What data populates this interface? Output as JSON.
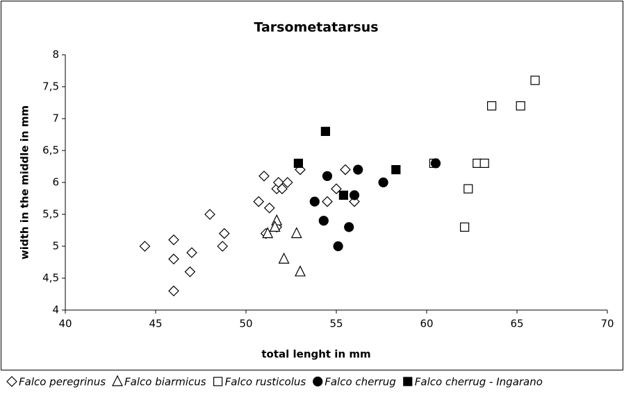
{
  "chart_data": {
    "type": "scatter",
    "title": "Tarsometatarsus",
    "xlabel": "total lenght in mm",
    "ylabel": "width in the middle in mm",
    "xlim": [
      40,
      70
    ],
    "xticks": [
      40,
      45,
      50,
      55,
      60,
      65,
      70
    ],
    "ylim": [
      4,
      8
    ],
    "yticks": [
      4,
      {
        "value": 4.5,
        "label": "4,5"
      },
      5,
      {
        "value": 5.5,
        "label": "5,5"
      },
      6,
      {
        "value": 6.5,
        "label": "6,5"
      },
      7,
      {
        "value": 7.5,
        "label": "7,5"
      },
      8
    ],
    "grid": false,
    "legend": "bottom",
    "series": [
      {
        "name": "Falco peregrinus",
        "color": "#000000",
        "marker": "diamond",
        "filled": false,
        "x": [
          44.4,
          46,
          46,
          46,
          47,
          46.9,
          48,
          48.7,
          48.8,
          50.7,
          51,
          51.3,
          51.1,
          51.7,
          51.8,
          52,
          52.3,
          53,
          51.7,
          54.5,
          55,
          55.5,
          56
        ],
        "values": [
          5.0,
          5.1,
          4.8,
          4.3,
          4.9,
          4.6,
          5.5,
          5.0,
          5.2,
          5.7,
          6.1,
          5.6,
          5.2,
          5.9,
          6.0,
          5.9,
          6.0,
          6.2,
          5.3,
          5.7,
          5.9,
          6.2,
          5.7
        ]
      },
      {
        "name": "Falco biarmicus",
        "color": "#000000",
        "marker": "triangle",
        "filled": false,
        "x": [
          51.2,
          51.7,
          51.6,
          52.1,
          52.8,
          53
        ],
        "values": [
          5.2,
          5.4,
          5.3,
          4.8,
          5.2,
          4.6
        ]
      },
      {
        "name": "Falco rusticolus",
        "color": "#000000",
        "marker": "square",
        "filled": false,
        "x": [
          60.4,
          62.1,
          62.3,
          62.8,
          63.2,
          63.6,
          65.2,
          66
        ],
        "values": [
          6.3,
          5.3,
          5.9,
          6.3,
          6.3,
          7.2,
          7.2,
          7.6
        ]
      },
      {
        "name": "Falco cherrug",
        "color": "#000000",
        "marker": "circle",
        "filled": true,
        "x": [
          53.8,
          54.3,
          54.5,
          55.1,
          55.7,
          56,
          56.2,
          57.6,
          60.5
        ],
        "values": [
          5.7,
          5.4,
          6.1,
          5.0,
          5.3,
          5.8,
          6.2,
          6.0,
          6.3
        ]
      },
      {
        "name": "Falco cherrug - Ingarano",
        "color": "#000000",
        "marker": "square",
        "filled": true,
        "x": [
          52.9,
          54.4,
          55.4,
          58.3
        ],
        "values": [
          6.3,
          6.8,
          5.8,
          6.2
        ]
      }
    ]
  }
}
